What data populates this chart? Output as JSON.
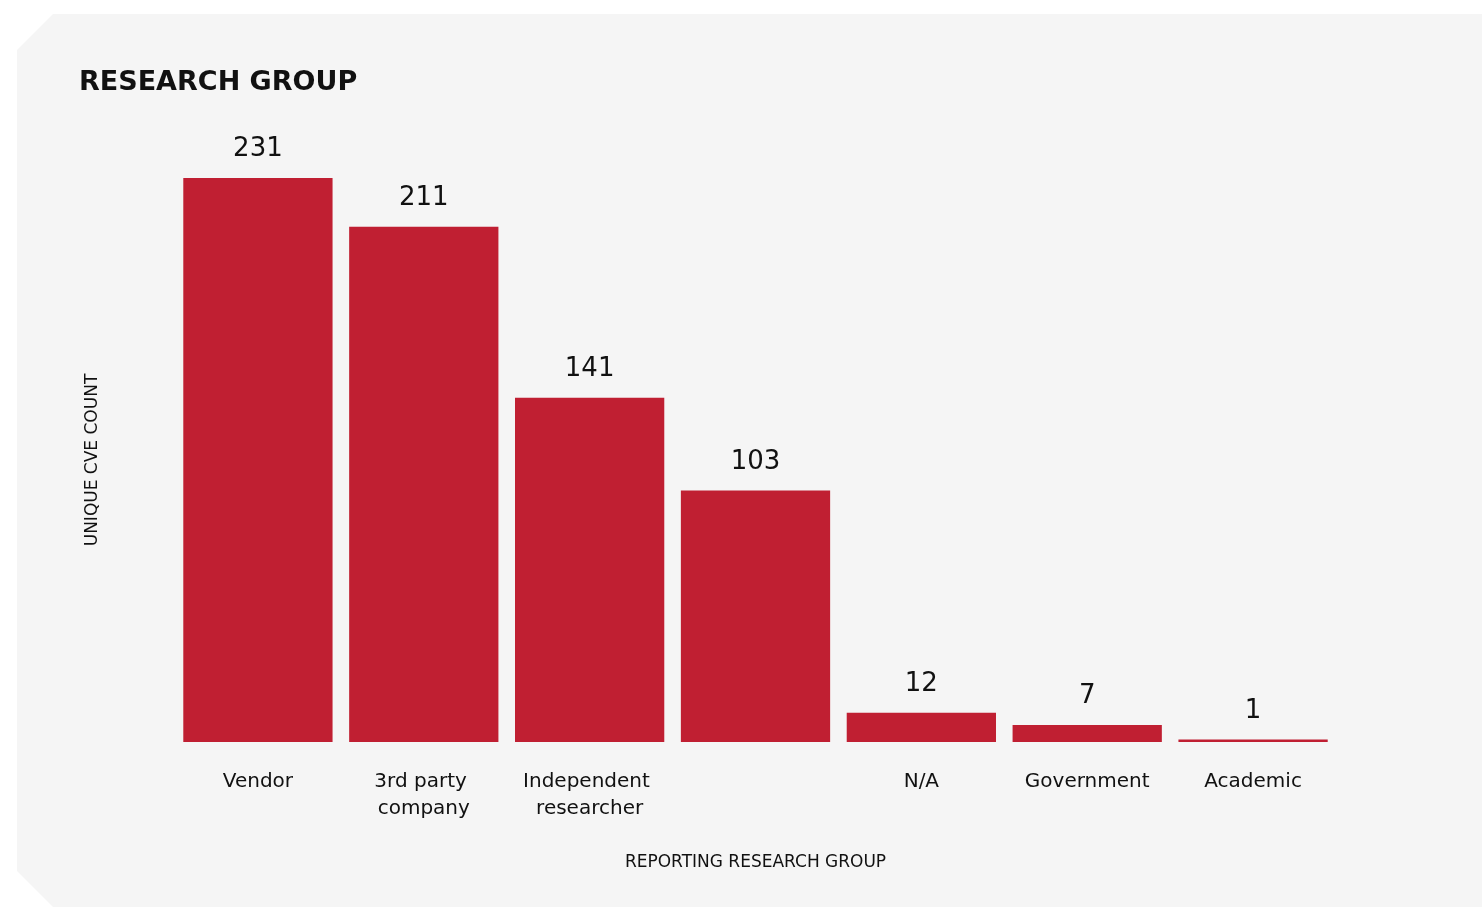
{
  "chart_data": {
    "type": "bar",
    "title": "RESEARCH GROUP",
    "xlabel": "REPORTING RESEARCH GROUP",
    "ylabel": "UNIQUE CVE COUNT",
    "categories": [
      "Vendor",
      "3rd party company",
      "Independent researcher",
      null,
      "N/A",
      "Government",
      "Academic"
    ],
    "values": [
      231,
      211,
      141,
      103,
      12,
      7,
      1
    ],
    "color": "#c01f32",
    "data_labels": true
  }
}
